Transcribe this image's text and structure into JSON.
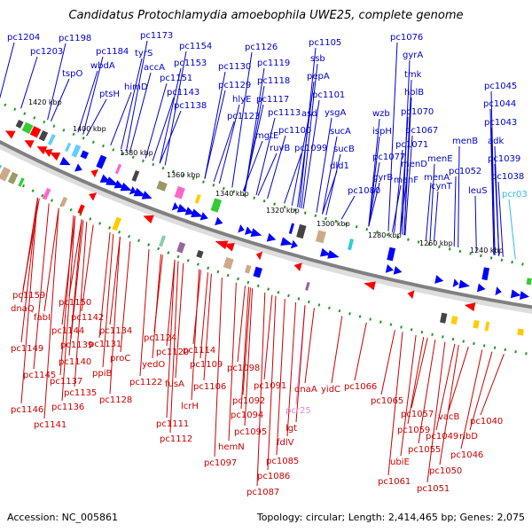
{
  "title": "Candidatus Protochlamydia amoebophila UWE25, complete genome",
  "accession": "Accession: NC_005861",
  "summary": "Topology: circular; Length: 2,414,465 bp; Genes: 2,075",
  "scale_labels": [
    "1420 kbp",
    "1400 kbp",
    "1380 kbp",
    "1360 kbp",
    "1340 kbp",
    "1320 kbp",
    "1300 kbp",
    "1280 kbp",
    "1260 kbp",
    "1240 kbp"
  ],
  "top_genes": [
    "pc1204",
    "pc1198",
    "pc1203",
    "pc1184",
    "wbdA",
    "tspO",
    "ptsH",
    "pc1173",
    "tyrS",
    "accA",
    "himD",
    "pc1154",
    "pc1153",
    "pc1151",
    "pc1143",
    "pc1138",
    "pc1130",
    "pc1126",
    "pc1119",
    "pc1118",
    "pc1129",
    "hlyE",
    "pc1117",
    "pc1123",
    "pc1113",
    "mgtE",
    "ruvB",
    "pc1105",
    "ssb",
    "pepA",
    "pc1101",
    "asd",
    "pc1100",
    "pc1099",
    "ysgA",
    "sucA",
    "sucB",
    "dld1",
    "pc1076",
    "gyrA",
    "tmk",
    "holB",
    "wzb",
    "pc1070",
    "ispH",
    "pc1067",
    "pc1071",
    "pc1077",
    "menB",
    "menD",
    "menE",
    "gyrB",
    "menF",
    "pc1080",
    "menA",
    "cynT",
    "pc1052",
    "pc1045",
    "pc1044",
    "pc1043",
    "adk",
    "pc1039",
    "pc1038",
    "leuS",
    "pcr03"
  ],
  "bottom_genes": [
    "pc1159",
    "dnaQ",
    "fabI",
    "pc1150",
    "pc1142",
    "pc1144",
    "pc1139",
    "pc1149",
    "pc1140",
    "pc1145",
    "pc1137",
    "pc1146",
    "pc1135",
    "pc1136",
    "pc1141",
    "pc1134",
    "pc1131",
    "proC",
    "ppiB",
    "pc1128",
    "pc1124",
    "pc1120",
    "yedO",
    "pc1122",
    "pc1114",
    "fusA",
    "pc1109",
    "pc1111",
    "pc1106",
    "lcrH",
    "pc1112",
    "pc1098",
    "pc1091",
    "pc1092",
    "pc1094",
    "pc1095",
    "hemN",
    "pc1097",
    "dnaA",
    "yidC",
    "pcr25",
    "lgt",
    "fdlV",
    "pc1085",
    "pc1086",
    "pc1087",
    "pc1066",
    "pc1065",
    "pc1057",
    "pc1059",
    "pc1055",
    "ubiE",
    "pc1061",
    "vacB",
    "pc1049",
    "pc1050",
    "pc1051",
    "pc1040",
    "ribD",
    "pc1046"
  ]
}
